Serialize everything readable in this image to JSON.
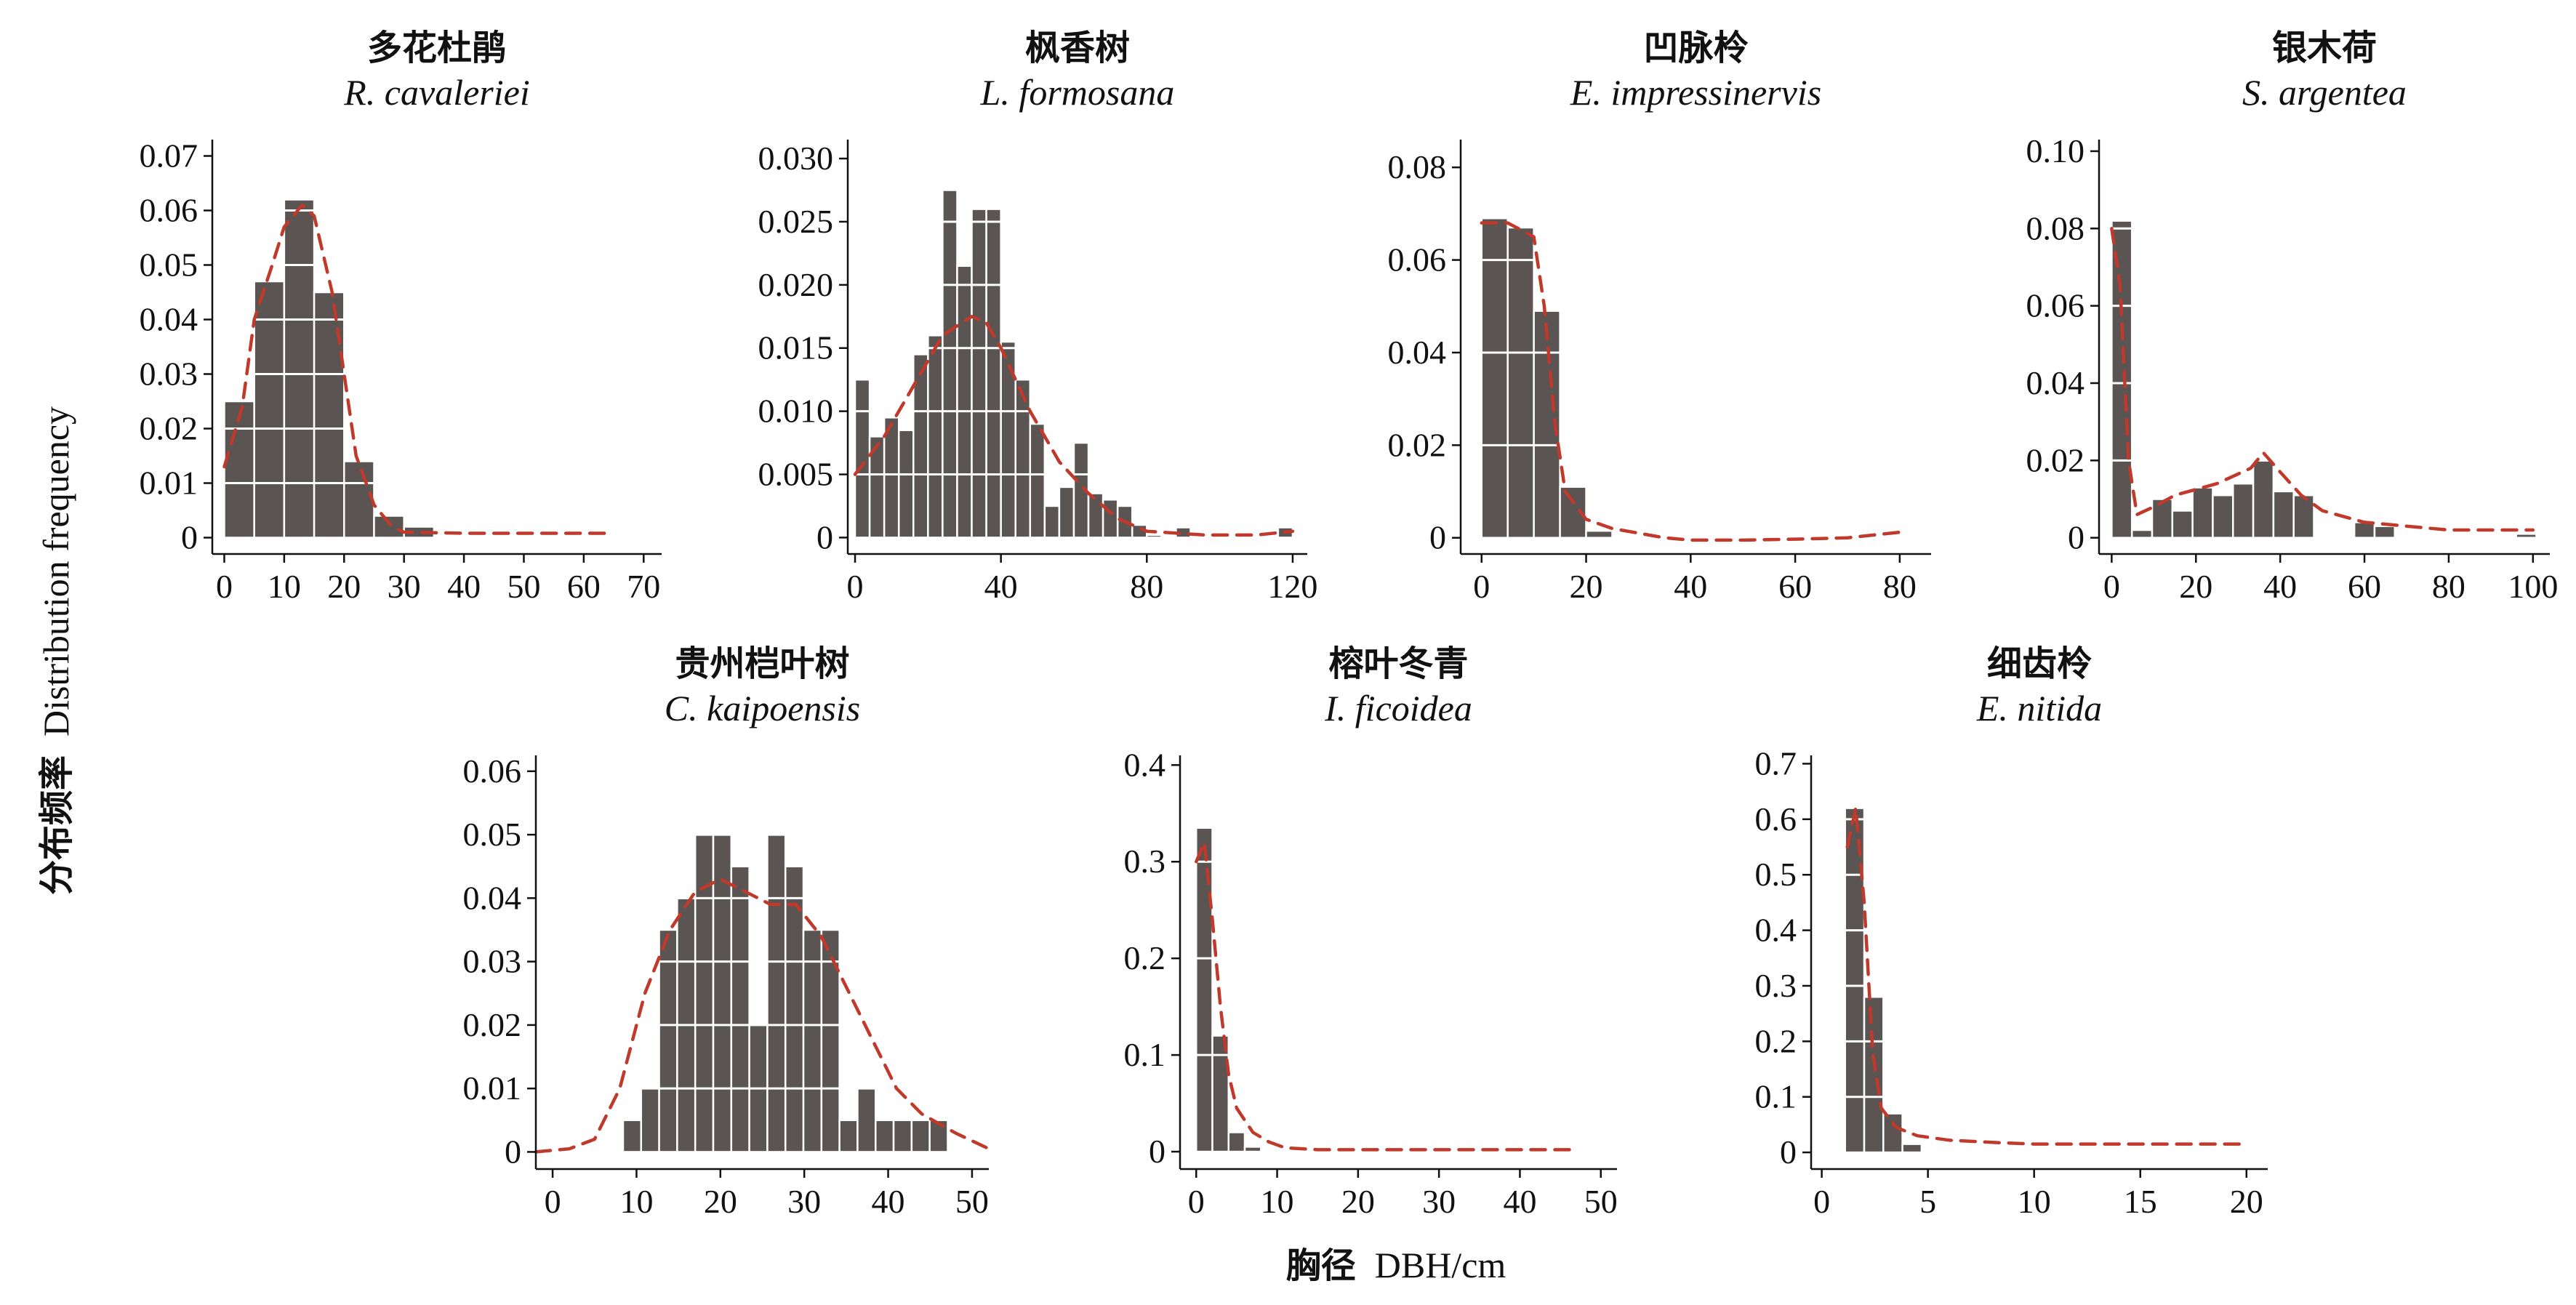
{
  "figure": {
    "ylabel_cn": "分布频率",
    "ylabel_en": "Distribution frequency",
    "xlabel_cn": "胸径",
    "xlabel_en": "DBH/cm"
  },
  "colors": {
    "bar": "#5a5452",
    "bar_edge": "#ffffff",
    "curve": "#c0392b",
    "axis": "#111111"
  },
  "chart_data": [
    {
      "type": "bar",
      "title_cn": "多花杜鹃",
      "title_lat": "R. cavaleriei",
      "xlim": [
        -2,
        73
      ],
      "ylim": [
        -0.003,
        0.073
      ],
      "xticks": [
        0,
        10,
        20,
        30,
        40,
        50,
        60,
        70
      ],
      "yticks": [
        0,
        0.01,
        0.02,
        0.03,
        0.04,
        0.05,
        0.06,
        0.07
      ],
      "ytick_labels": [
        "0",
        "0.01",
        "0.02",
        "0.03",
        "0.04",
        "0.05",
        "0.06",
        "0.07"
      ],
      "bin_width": 5,
      "bars": [
        [
          0,
          0.025
        ],
        [
          5,
          0.047
        ],
        [
          10,
          0.062
        ],
        [
          15,
          0.045
        ],
        [
          20,
          0.014
        ],
        [
          25,
          0.004
        ],
        [
          30,
          0.002
        ]
      ],
      "curve": [
        [
          0,
          0.013
        ],
        [
          3,
          0.024
        ],
        [
          5,
          0.04
        ],
        [
          8,
          0.05
        ],
        [
          10,
          0.057
        ],
        [
          13,
          0.061
        ],
        [
          15,
          0.059
        ],
        [
          18,
          0.045
        ],
        [
          20,
          0.03
        ],
        [
          22,
          0.015
        ],
        [
          25,
          0.006
        ],
        [
          28,
          0.002
        ],
        [
          30,
          0.001
        ],
        [
          40,
          0.0008
        ],
        [
          50,
          0.0008
        ],
        [
          60,
          0.0008
        ],
        [
          65,
          0.0008
        ]
      ]
    },
    {
      "type": "bar",
      "title_cn": "枫香树",
      "title_lat": "L. formosana",
      "xlim": [
        -2,
        124
      ],
      "ylim": [
        -0.0013,
        0.0315
      ],
      "xticks": [
        0,
        40,
        80,
        120
      ],
      "yticks": [
        0,
        0.005,
        0.01,
        0.015,
        0.02,
        0.025,
        0.03
      ],
      "ytick_labels": [
        "0",
        "0.005",
        "0.010",
        "0.015",
        "0.020",
        "0.025",
        "0.030"
      ],
      "bin_width": 4,
      "bars": [
        [
          0,
          0.0125
        ],
        [
          4,
          0.008
        ],
        [
          8,
          0.0095
        ],
        [
          12,
          0.0085
        ],
        [
          16,
          0.0145
        ],
        [
          20,
          0.016
        ],
        [
          24,
          0.0275
        ],
        [
          28,
          0.0215
        ],
        [
          32,
          0.026
        ],
        [
          36,
          0.026
        ],
        [
          40,
          0.0155
        ],
        [
          44,
          0.0125
        ],
        [
          48,
          0.009
        ],
        [
          52,
          0.0025
        ],
        [
          56,
          0.004
        ],
        [
          60,
          0.0075
        ],
        [
          64,
          0.0035
        ],
        [
          68,
          0.003
        ],
        [
          72,
          0.0025
        ],
        [
          76,
          0.001
        ],
        [
          80,
          0.0002
        ],
        [
          88,
          0.0008
        ],
        [
          116,
          0.0008
        ]
      ],
      "curve": [
        [
          0,
          0.005
        ],
        [
          8,
          0.008
        ],
        [
          16,
          0.012
        ],
        [
          24,
          0.016
        ],
        [
          32,
          0.0175
        ],
        [
          36,
          0.017
        ],
        [
          40,
          0.015
        ],
        [
          48,
          0.01
        ],
        [
          56,
          0.006
        ],
        [
          64,
          0.0035
        ],
        [
          72,
          0.0015
        ],
        [
          80,
          0.0005
        ],
        [
          96,
          0.0002
        ],
        [
          110,
          0.0002
        ],
        [
          120,
          0.0005
        ]
      ]
    },
    {
      "type": "bar",
      "title_cn": "凹脉柃",
      "title_lat": "E. impressinervis",
      "xlim": [
        -4,
        86
      ],
      "ylim": [
        -0.0035,
        0.086
      ],
      "xticks": [
        0,
        20,
        40,
        60,
        80
      ],
      "yticks": [
        0,
        0.02,
        0.04,
        0.06,
        0.08
      ],
      "ytick_labels": [
        "0",
        "0.02",
        "0.04",
        "0.06",
        "0.08"
      ],
      "bin_width": 5,
      "bars": [
        [
          0,
          0.069
        ],
        [
          5,
          0.067
        ],
        [
          10,
          0.049
        ],
        [
          15,
          0.011
        ],
        [
          20,
          0.0015
        ]
      ],
      "curve": [
        [
          0,
          0.068
        ],
        [
          5,
          0.068
        ],
        [
          10,
          0.065
        ],
        [
          12,
          0.05
        ],
        [
          14,
          0.025
        ],
        [
          16,
          0.01
        ],
        [
          20,
          0.004
        ],
        [
          25,
          0.002
        ],
        [
          30,
          0.001
        ],
        [
          35,
          0
        ],
        [
          40,
          -0.0005
        ],
        [
          50,
          -0.0005
        ],
        [
          60,
          -0.0003
        ],
        [
          70,
          0.0
        ],
        [
          80,
          0.0012
        ]
      ]
    },
    {
      "type": "bar",
      "title_cn": "银木荷",
      "title_lat": "S. argentea",
      "xlim": [
        -3,
        104
      ],
      "ylim": [
        -0.0042,
        0.103
      ],
      "xticks": [
        0,
        20,
        40,
        60,
        80,
        100
      ],
      "yticks": [
        0,
        0.02,
        0.04,
        0.06,
        0.08,
        0.1
      ],
      "ytick_labels": [
        "0",
        "0.02",
        "0.04",
        "0.06",
        "0.08",
        "0.10"
      ],
      "bin_width": 4.8,
      "bars": [
        [
          0,
          0.082
        ],
        [
          4.8,
          0.002
        ],
        [
          9.6,
          0.01
        ],
        [
          14.4,
          0.007
        ],
        [
          19.2,
          0.013
        ],
        [
          24,
          0.011
        ],
        [
          28.8,
          0.014
        ],
        [
          33.6,
          0.02
        ],
        [
          38.4,
          0.012
        ],
        [
          43.2,
          0.011
        ],
        [
          57.6,
          0.004
        ],
        [
          62.4,
          0.003
        ],
        [
          96,
          0.001
        ]
      ],
      "curve": [
        [
          0,
          0.08
        ],
        [
          2,
          0.065
        ],
        [
          4,
          0.02
        ],
        [
          6,
          0.006
        ],
        [
          10,
          0.008
        ],
        [
          15,
          0.011
        ],
        [
          25,
          0.014
        ],
        [
          33,
          0.018
        ],
        [
          36,
          0.022
        ],
        [
          40,
          0.017
        ],
        [
          45,
          0.011
        ],
        [
          50,
          0.007
        ],
        [
          60,
          0.004
        ],
        [
          70,
          0.003
        ],
        [
          80,
          0.002
        ],
        [
          90,
          0.002
        ],
        [
          100,
          0.002
        ]
      ]
    },
    {
      "type": "bar",
      "title_cn": "贵州桤叶树",
      "title_lat": "C. kaipoensis",
      "xlim": [
        -2,
        52
      ],
      "ylim": [
        -0.0027,
        0.0625
      ],
      "xticks": [
        0,
        10,
        20,
        30,
        40,
        50
      ],
      "yticks": [
        0,
        0.01,
        0.02,
        0.03,
        0.04,
        0.05,
        0.06
      ],
      "ytick_labels": [
        "0",
        "0.01",
        "0.02",
        "0.03",
        "0.04",
        "0.05",
        "0.06"
      ],
      "bin_width": 2.15,
      "bars": [
        [
          8.4,
          0.005
        ],
        [
          10.55,
          0.01
        ],
        [
          12.7,
          0.035
        ],
        [
          14.85,
          0.04
        ],
        [
          17.0,
          0.05
        ],
        [
          19.15,
          0.05
        ],
        [
          21.3,
          0.045
        ],
        [
          23.45,
          0.02
        ],
        [
          25.6,
          0.05
        ],
        [
          27.75,
          0.045
        ],
        [
          29.9,
          0.035
        ],
        [
          32.05,
          0.035
        ],
        [
          34.2,
          0.005
        ],
        [
          36.35,
          0.01
        ],
        [
          38.5,
          0.005
        ],
        [
          40.65,
          0.005
        ],
        [
          42.8,
          0.005
        ],
        [
          44.95,
          0.005
        ]
      ],
      "curve": [
        [
          -2,
          0
        ],
        [
          2,
          0.0005
        ],
        [
          5,
          0.002
        ],
        [
          8,
          0.01
        ],
        [
          11,
          0.025
        ],
        [
          14,
          0.035
        ],
        [
          17,
          0.041
        ],
        [
          20,
          0.043
        ],
        [
          23,
          0.041
        ],
        [
          26,
          0.039
        ],
        [
          29,
          0.039
        ],
        [
          32,
          0.034
        ],
        [
          35,
          0.026
        ],
        [
          38,
          0.018
        ],
        [
          41,
          0.01
        ],
        [
          44,
          0.006
        ],
        [
          48,
          0.003
        ],
        [
          52,
          0.0005
        ]
      ]
    },
    {
      "type": "bar",
      "title_cn": "榕叶冬青",
      "title_lat": "I. ficoidea",
      "xlim": [
        -2,
        52
      ],
      "ylim": [
        -0.018,
        0.41
      ],
      "xticks": [
        0,
        10,
        20,
        30,
        40,
        50
      ],
      "yticks": [
        0,
        0.1,
        0.2,
        0.3,
        0.4
      ],
      "ytick_labels": [
        "0",
        "0.1",
        "0.2",
        "0.3",
        "0.4"
      ],
      "bin_width": 2.0,
      "bars": [
        [
          0,
          0.335
        ],
        [
          2,
          0.12
        ],
        [
          4,
          0.02
        ],
        [
          6,
          0.005
        ],
        [
          8,
          0.001
        ]
      ],
      "curve": [
        [
          0,
          0.3
        ],
        [
          1,
          0.32
        ],
        [
          2,
          0.24
        ],
        [
          3,
          0.15
        ],
        [
          4,
          0.08
        ],
        [
          5,
          0.045
        ],
        [
          7,
          0.02
        ],
        [
          9,
          0.01
        ],
        [
          11,
          0.004
        ],
        [
          15,
          0.002
        ],
        [
          20,
          0.002
        ],
        [
          30,
          0.002
        ],
        [
          40,
          0.002
        ],
        [
          47,
          0.002
        ]
      ]
    },
    {
      "type": "bar",
      "title_cn": "细齿柃",
      "title_lat": "E. nitida",
      "xlim": [
        -0.5,
        21
      ],
      "ylim": [
        -0.03,
        0.715
      ],
      "xticks": [
        0,
        5,
        10,
        15,
        20
      ],
      "yticks": [
        0,
        0.1,
        0.2,
        0.3,
        0.4,
        0.5,
        0.6,
        0.7
      ],
      "ytick_labels": [
        "0",
        "0.1",
        "0.2",
        "0.3",
        "0.4",
        "0.5",
        "0.6",
        "0.7"
      ],
      "bin_width": 0.9,
      "bars": [
        [
          1.1,
          0.62
        ],
        [
          2.0,
          0.28
        ],
        [
          2.9,
          0.07
        ],
        [
          3.8,
          0.015
        ]
      ],
      "curve": [
        [
          1.2,
          0.55
        ],
        [
          1.6,
          0.62
        ],
        [
          2.0,
          0.45
        ],
        [
          2.4,
          0.18
        ],
        [
          2.8,
          0.08
        ],
        [
          3.5,
          0.045
        ],
        [
          4.5,
          0.03
        ],
        [
          6,
          0.022
        ],
        [
          8,
          0.018
        ],
        [
          10,
          0.015
        ],
        [
          13,
          0.015
        ],
        [
          16,
          0.015
        ],
        [
          20,
          0.015
        ]
      ]
    }
  ]
}
